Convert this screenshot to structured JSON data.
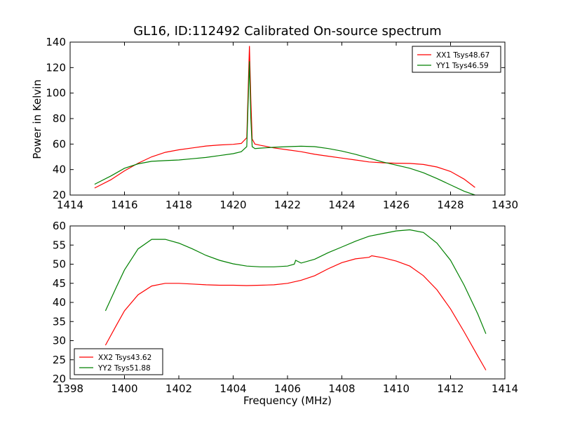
{
  "figure": {
    "title": "GL16, ID:112492 Calibrated On-source spectrum",
    "xlabel": "Frequency (MHz)"
  },
  "chart_data": [
    {
      "type": "line",
      "title": "GL16, ID:112492 Calibrated On-source spectrum",
      "xlabel": "",
      "ylabel": "Power in Kelvin",
      "xlim": [
        1414,
        1430
      ],
      "ylim": [
        20,
        140
      ],
      "xticks": [
        1414,
        1416,
        1418,
        1420,
        1422,
        1424,
        1426,
        1428,
        1430
      ],
      "yticks": [
        20,
        40,
        60,
        80,
        100,
        120,
        140
      ],
      "legend_position": "top-right",
      "grid": false,
      "series": [
        {
          "name": "XX1 Tsys48.67",
          "color": "#ff0000",
          "x": [
            1414.9,
            1415.5,
            1416.0,
            1416.5,
            1417.0,
            1417.5,
            1418.0,
            1418.5,
            1419.0,
            1419.5,
            1420.0,
            1420.3,
            1420.5,
            1420.6,
            1420.65,
            1420.7,
            1420.8,
            1421.0,
            1421.5,
            1422.0,
            1422.5,
            1423.0,
            1423.5,
            1424.0,
            1424.5,
            1425.0,
            1425.5,
            1426.0,
            1426.5,
            1427.0,
            1427.5,
            1428.0,
            1428.5,
            1428.9
          ],
          "y": [
            25.5,
            32,
            39,
            45,
            50,
            53.5,
            55.5,
            57,
            58.5,
            59.3,
            59.8,
            60.5,
            65,
            137,
            95,
            64,
            60,
            59,
            57,
            55.5,
            54,
            52,
            50.5,
            49,
            47.5,
            46,
            45.3,
            45,
            44.8,
            44,
            42,
            38.5,
            32.5,
            26
          ]
        },
        {
          "name": "YY1 Tsys46.59",
          "color": "#008000",
          "x": [
            1414.9,
            1415.5,
            1416.0,
            1416.5,
            1417.0,
            1417.5,
            1418.0,
            1418.5,
            1419.0,
            1419.5,
            1420.0,
            1420.3,
            1420.5,
            1420.6,
            1420.65,
            1420.7,
            1420.8,
            1421.0,
            1421.5,
            1422.0,
            1422.5,
            1423.0,
            1423.5,
            1424.0,
            1424.5,
            1425.0,
            1425.5,
            1426.0,
            1426.5,
            1427.0,
            1427.5,
            1428.0,
            1428.5,
            1428.9
          ],
          "y": [
            28.5,
            35,
            41,
            44.5,
            46.5,
            47,
            47.5,
            48.5,
            49.5,
            51,
            52.5,
            54,
            58,
            125,
            80,
            58,
            56.5,
            56.8,
            57.5,
            58,
            58.3,
            58,
            56.5,
            54.5,
            52,
            49,
            46,
            43.5,
            41,
            37.5,
            33,
            28,
            23,
            20
          ]
        }
      ]
    },
    {
      "type": "line",
      "xlabel": "Frequency (MHz)",
      "ylabel": "",
      "xlim": [
        1398,
        1414
      ],
      "ylim": [
        20,
        60
      ],
      "xticks": [
        1398,
        1400,
        1402,
        1404,
        1406,
        1408,
        1410,
        1412,
        1414
      ],
      "yticks": [
        20,
        25,
        30,
        35,
        40,
        45,
        50,
        55,
        60
      ],
      "legend_position": "bottom-left",
      "grid": false,
      "series": [
        {
          "name": "XX2 Tsys43.62",
          "color": "#ff0000",
          "x": [
            1399.3,
            1399.7,
            1400.0,
            1400.5,
            1401.0,
            1401.5,
            1402.0,
            1402.5,
            1403.0,
            1403.5,
            1404.0,
            1404.5,
            1405.0,
            1405.5,
            1406.0,
            1406.5,
            1407.0,
            1407.5,
            1408.0,
            1408.5,
            1409.0,
            1409.1,
            1409.5,
            1410.0,
            1410.5,
            1411.0,
            1411.5,
            1412.0,
            1412.5,
            1413.0,
            1413.3
          ],
          "y": [
            28.8,
            34,
            37.8,
            42,
            44.3,
            45,
            45,
            44.8,
            44.6,
            44.5,
            44.5,
            44.4,
            44.5,
            44.6,
            45,
            45.8,
            47,
            48.8,
            50.4,
            51.4,
            51.8,
            52.2,
            51.7,
            50.8,
            49.5,
            47,
            43.3,
            38.3,
            32.3,
            26,
            22.3
          ]
        },
        {
          "name": "YY2 Tsys51.88",
          "color": "#008000",
          "x": [
            1399.3,
            1399.7,
            1400.0,
            1400.5,
            1401.0,
            1401.5,
            1402.0,
            1402.5,
            1403.0,
            1403.5,
            1404.0,
            1404.5,
            1405.0,
            1405.5,
            1406.0,
            1406.25,
            1406.3,
            1406.5,
            1407.0,
            1407.5,
            1408.0,
            1408.5,
            1409.0,
            1409.5,
            1410.0,
            1410.5,
            1411.0,
            1411.5,
            1412.0,
            1412.5,
            1413.0,
            1413.3
          ],
          "y": [
            37.8,
            44,
            48.5,
            54,
            56.5,
            56.5,
            55.5,
            54,
            52.3,
            51,
            50.1,
            49.5,
            49.3,
            49.3,
            49.5,
            50,
            51,
            50.3,
            51.3,
            53,
            54.5,
            56,
            57.3,
            58,
            58.7,
            59,
            58.3,
            55.5,
            51,
            44.5,
            37,
            31.8
          ]
        }
      ]
    }
  ]
}
